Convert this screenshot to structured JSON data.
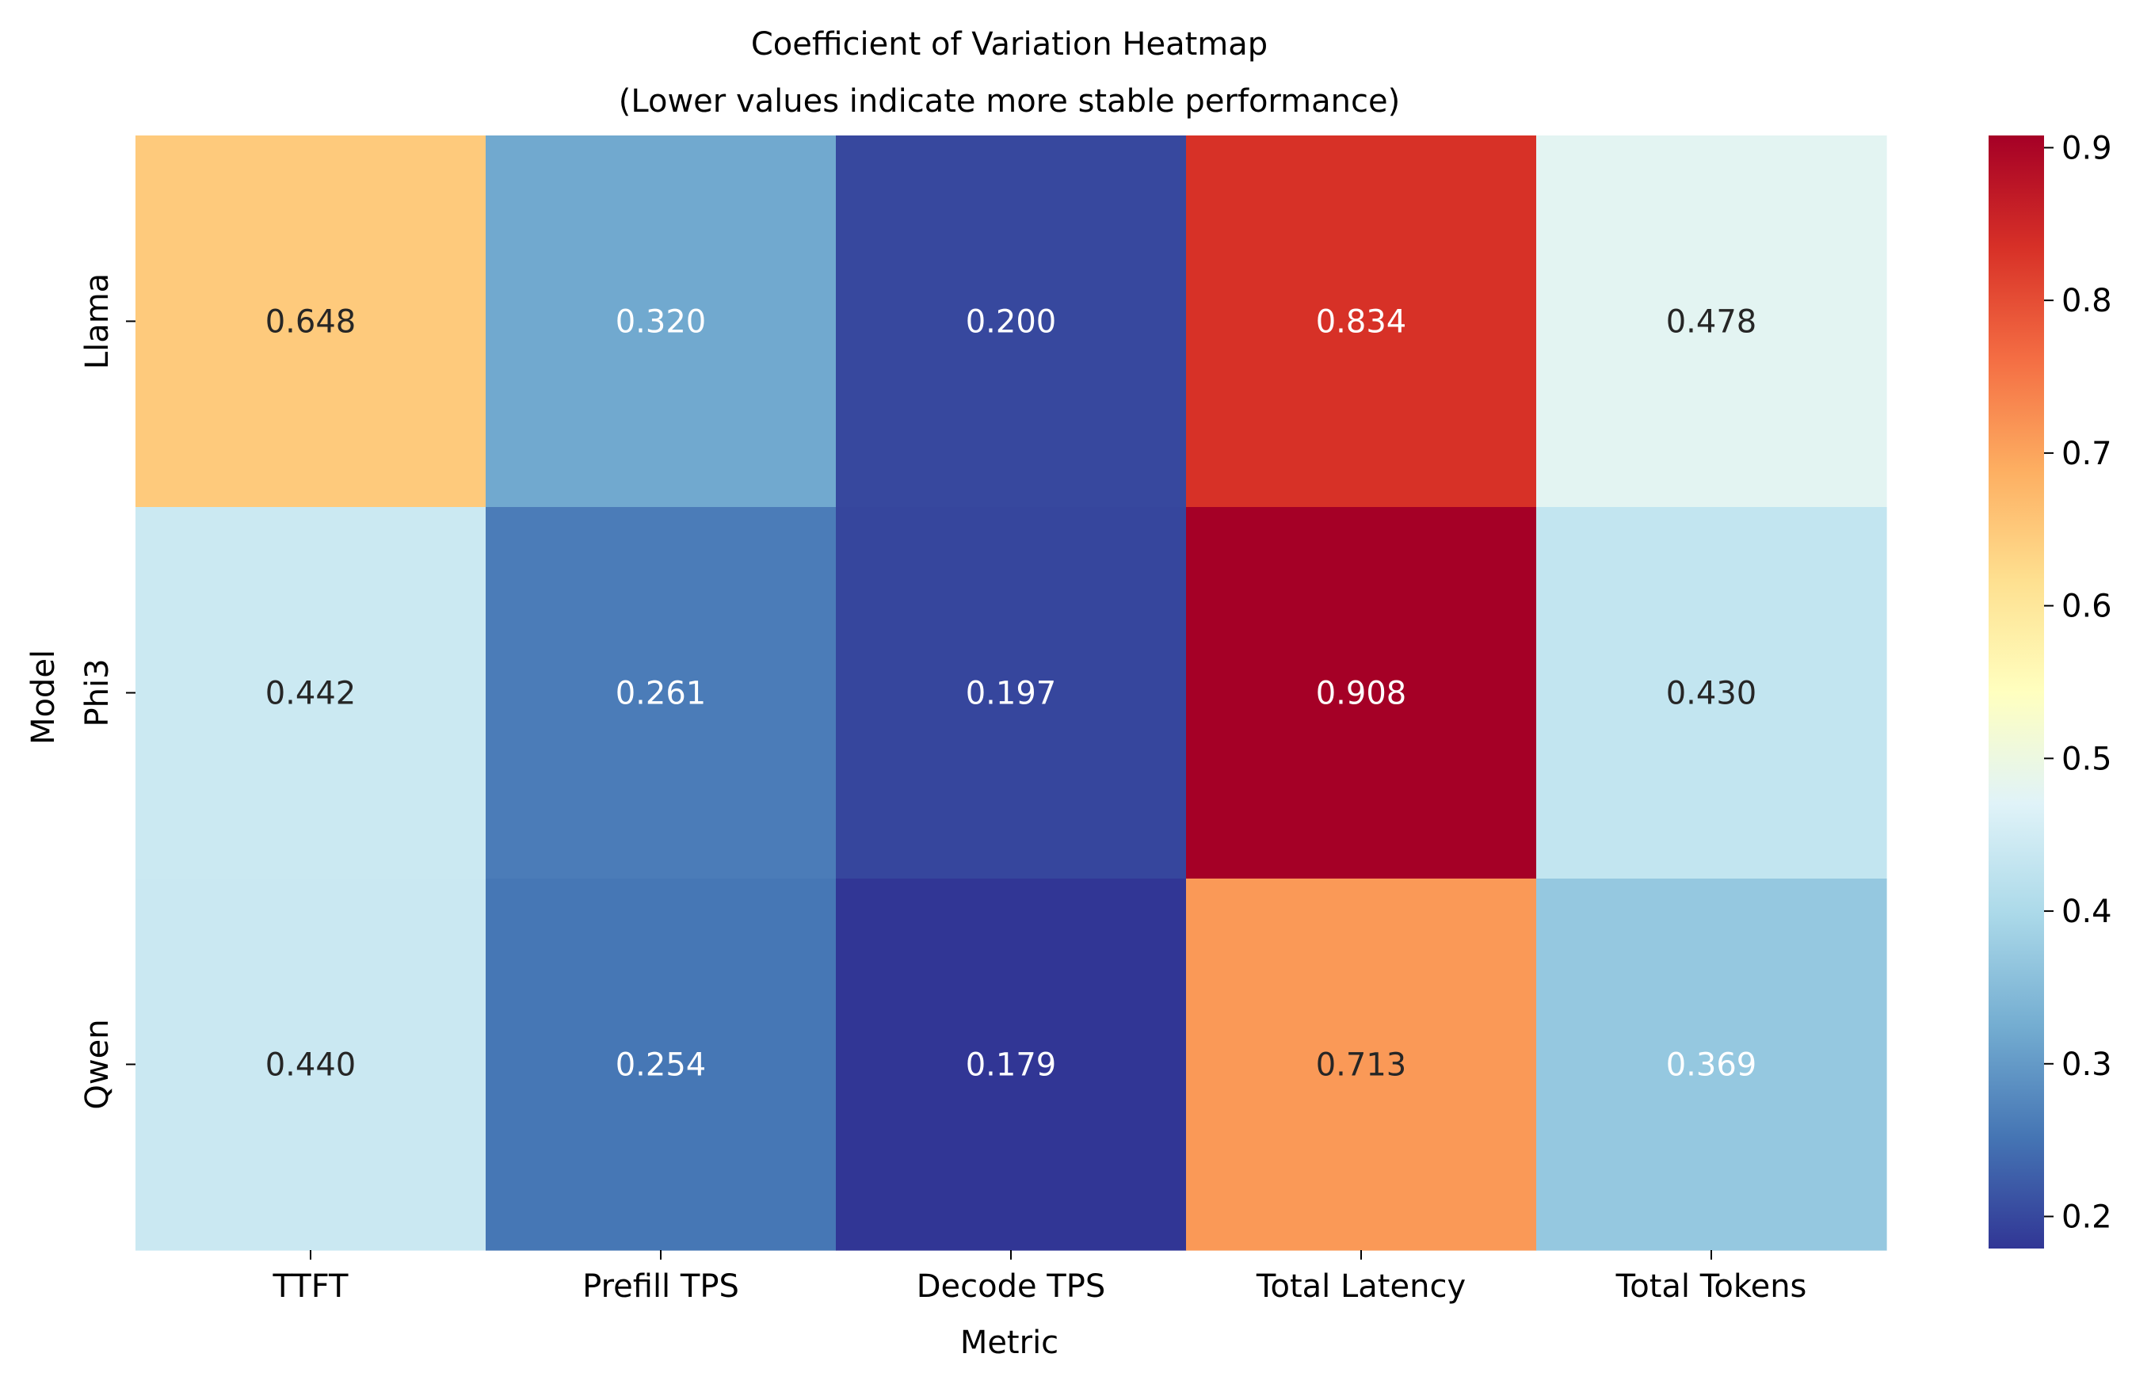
{
  "chart_data": {
    "type": "heatmap",
    "title": "Coefficient of Variation Heatmap",
    "subtitle": "(Lower values indicate more stable performance)",
    "xlabel": "Metric",
    "ylabel": "Model",
    "x_categories": [
      "TTFT",
      "Prefill TPS",
      "Decode TPS",
      "Total Latency",
      "Total Tokens"
    ],
    "y_categories": [
      "Llama",
      "Phi3",
      "Qwen"
    ],
    "values": [
      [
        0.648,
        0.32,
        0.2,
        0.834,
        0.478
      ],
      [
        0.442,
        0.261,
        0.197,
        0.908,
        0.43
      ],
      [
        0.44,
        0.254,
        0.179,
        0.713,
        0.369
      ]
    ],
    "cell_labels": [
      [
        "0.648",
        "0.320",
        "0.200",
        "0.834",
        "0.478"
      ],
      [
        "0.442",
        "0.261",
        "0.197",
        "0.908",
        "0.430"
      ],
      [
        "0.440",
        "0.254",
        "0.179",
        "0.713",
        "0.369"
      ]
    ],
    "colormap": "RdYlBu_r",
    "colormap_stops": [
      "#313695",
      "#4575b4",
      "#74add1",
      "#abd9e9",
      "#e0f3f8",
      "#ffffbf",
      "#fee090",
      "#fdae61",
      "#f46d43",
      "#d73027",
      "#a50026"
    ],
    "vmin": 0.179,
    "vmax": 0.908,
    "colorbar_ticks": [
      "0.2",
      "0.3",
      "0.4",
      "0.5",
      "0.6",
      "0.7",
      "0.8",
      "0.9"
    ],
    "colorbar_tick_values": [
      0.2,
      0.3,
      0.4,
      0.5,
      0.6,
      0.7,
      0.8,
      0.9
    ],
    "text_color_dark": "#262626",
    "text_color_light": "#ffffff"
  }
}
